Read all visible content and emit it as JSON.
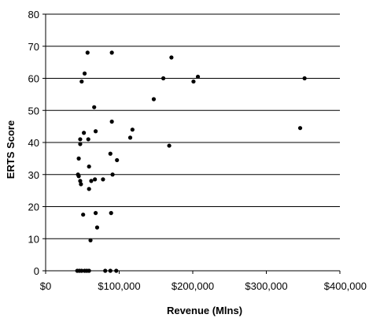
{
  "chart_data": {
    "type": "scatter",
    "title": "",
    "xlabel": "Revenue (Mlns)",
    "ylabel": "ERTS Score",
    "xlim": [
      0,
      400000
    ],
    "ylim": [
      0,
      80
    ],
    "x_ticks": [
      0,
      100000,
      200000,
      300000,
      400000
    ],
    "x_tick_labels": [
      "$0",
      "$100,000",
      "$200,000",
      "$300,000",
      "$400,000"
    ],
    "y_ticks": [
      0,
      10,
      20,
      30,
      40,
      50,
      60,
      70,
      80
    ],
    "y_tick_labels": [
      "0",
      "10",
      "20",
      "30",
      "40",
      "50",
      "60",
      "70",
      "80"
    ],
    "grid": "horizontal",
    "legend": "none",
    "marker_color": "#000000",
    "series": [
      {
        "points": [
          [
            57000,
            68
          ],
          [
            90000,
            68
          ],
          [
            53000,
            61.5
          ],
          [
            49000,
            59
          ],
          [
            171000,
            66.5
          ],
          [
            160000,
            60
          ],
          [
            207000,
            60.5
          ],
          [
            201000,
            59
          ],
          [
            352000,
            60
          ],
          [
            66000,
            51
          ],
          [
            147000,
            53.5
          ],
          [
            346000,
            44.5
          ],
          [
            90000,
            46.5
          ],
          [
            118000,
            44
          ],
          [
            115000,
            41.5
          ],
          [
            168000,
            39
          ],
          [
            47000,
            41
          ],
          [
            58000,
            41
          ],
          [
            52000,
            43
          ],
          [
            68000,
            43.5
          ],
          [
            47000,
            39.5
          ],
          [
            45000,
            35
          ],
          [
            88000,
            36.5
          ],
          [
            97000,
            34.5
          ],
          [
            59000,
            32.5
          ],
          [
            44000,
            30
          ],
          [
            45000,
            29.5
          ],
          [
            91000,
            30
          ],
          [
            47000,
            28
          ],
          [
            48000,
            27
          ],
          [
            62000,
            28
          ],
          [
            67000,
            28.5
          ],
          [
            78000,
            28.5
          ],
          [
            59000,
            25.5
          ],
          [
            51000,
            17.5
          ],
          [
            68000,
            18
          ],
          [
            89000,
            18
          ],
          [
            70000,
            13.5
          ],
          [
            61000,
            9.5
          ],
          [
            43000,
            0
          ],
          [
            46000,
            0
          ],
          [
            49000,
            0
          ],
          [
            53000,
            0
          ],
          [
            56000,
            0
          ],
          [
            59000,
            0
          ],
          [
            81000,
            0
          ],
          [
            88000,
            0
          ],
          [
            96000,
            0
          ]
        ]
      }
    ]
  }
}
